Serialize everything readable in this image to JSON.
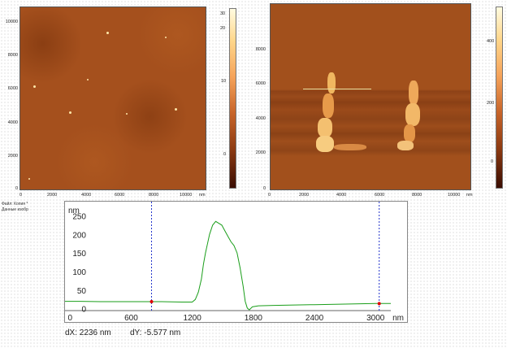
{
  "left_image": {
    "y_ticks": [
      "10000",
      "8000",
      "6000",
      "4000",
      "2000",
      "0"
    ],
    "x_ticks": [
      "0",
      "2000",
      "4000",
      "6000",
      "8000",
      "10000",
      "nm"
    ],
    "colorbar_ticks": [
      "30",
      "20",
      "10",
      "0"
    ]
  },
  "right_image": {
    "y_ticks": [
      "8000",
      "6000",
      "4000",
      "2000",
      "0"
    ],
    "x_ticks": [
      "0",
      "2000",
      "4000",
      "6000",
      "8000",
      "10000",
      "nm"
    ],
    "colorbar_ticks": [
      "400",
      "200",
      "0"
    ]
  },
  "file_info": {
    "line1": "Файл: Копия *",
    "line2": "Данные изобр"
  },
  "colors": {
    "profile_line": "#1a9e1a",
    "cursor_line": "#2233cc",
    "cursor_marker": "#e00000",
    "afm_base": "#a5501d",
    "afm_highlight": "#ffe7a8"
  },
  "chart_data": {
    "type": "line",
    "title": "",
    "xlabel": "nm",
    "ylabel": "nm",
    "xlim": [
      -50,
      3150
    ],
    "ylim": [
      -5,
      275
    ],
    "x_ticks": [
      0,
      600,
      1200,
      1800,
      2400,
      3000
    ],
    "y_ticks": [
      0,
      50,
      100,
      150,
      200,
      250
    ],
    "cursors_x": [
      800,
      3036
    ],
    "series": [
      {
        "x": [
          -50,
          100,
          300,
          500,
          700,
          900,
          1100,
          1200,
          1230,
          1260,
          1290,
          1310,
          1330,
          1350,
          1370,
          1400,
          1430,
          1460,
          1490,
          1520,
          1550,
          1580,
          1610,
          1640,
          1670,
          1700,
          1720,
          1740,
          1760,
          1790,
          1850,
          2000,
          2200,
          2400,
          2600,
          2800,
          3000,
          3150
        ],
        "y": [
          20,
          20,
          19,
          19,
          19,
          19,
          18,
          18,
          25,
          45,
          80,
          120,
          150,
          175,
          200,
          225,
          235,
          230,
          225,
          210,
          195,
          180,
          170,
          150,
          110,
          60,
          20,
          2,
          -3,
          5,
          8,
          9,
          10,
          11,
          12,
          13,
          14,
          14
        ]
      }
    ]
  },
  "readout": {
    "dx": "dX: 2236 nm",
    "dy": "dY: -5.577 nm"
  }
}
